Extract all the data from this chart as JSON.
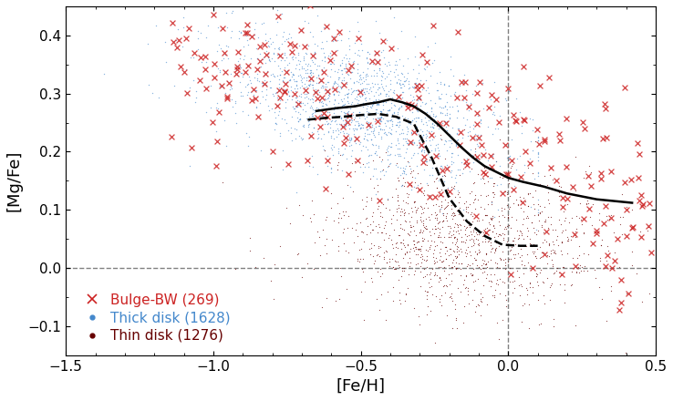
{
  "xlim": [
    -1.5,
    0.5
  ],
  "ylim": [
    -0.15,
    0.45
  ],
  "xlabel": "[Fe/H]",
  "ylabel": "[Mg/Fe]",
  "vline_x": 0.0,
  "hline_y": 0.0,
  "bulge_color": "#cc2222",
  "thick_disk_color": "#4488cc",
  "thin_disk_color": "#660000",
  "median_line_color": "black",
  "median_dashed_color": "black",
  "legend_labels": [
    "Bulge-BW (269)",
    "Thick disk (1628)",
    "Thin disk (1276)"
  ],
  "random_seed": 42,
  "n_bulge": 269,
  "n_thick": 1628,
  "n_thin": 1276,
  "median_x": [
    -0.65,
    -0.58,
    -0.52,
    -0.48,
    -0.44,
    -0.4,
    -0.36,
    -0.32,
    -0.28,
    -0.24,
    -0.2,
    -0.16,
    -0.12,
    -0.08,
    -0.04,
    0.0,
    0.05,
    0.12,
    0.2,
    0.3,
    0.42
  ],
  "median_y": [
    0.27,
    0.275,
    0.278,
    0.282,
    0.285,
    0.29,
    0.285,
    0.278,
    0.265,
    0.248,
    0.228,
    0.208,
    0.19,
    0.175,
    0.165,
    0.155,
    0.148,
    0.14,
    0.128,
    0.118,
    0.112
  ],
  "dashed_x": [
    -0.68,
    -0.62,
    -0.56,
    -0.5,
    -0.44,
    -0.38,
    -0.32,
    -0.26,
    -0.2,
    -0.14,
    -0.08,
    -0.02,
    0.04,
    0.1
  ],
  "dashed_y": [
    0.255,
    0.258,
    0.26,
    0.263,
    0.265,
    0.26,
    0.248,
    0.19,
    0.12,
    0.08,
    0.055,
    0.04,
    0.038,
    0.038
  ]
}
